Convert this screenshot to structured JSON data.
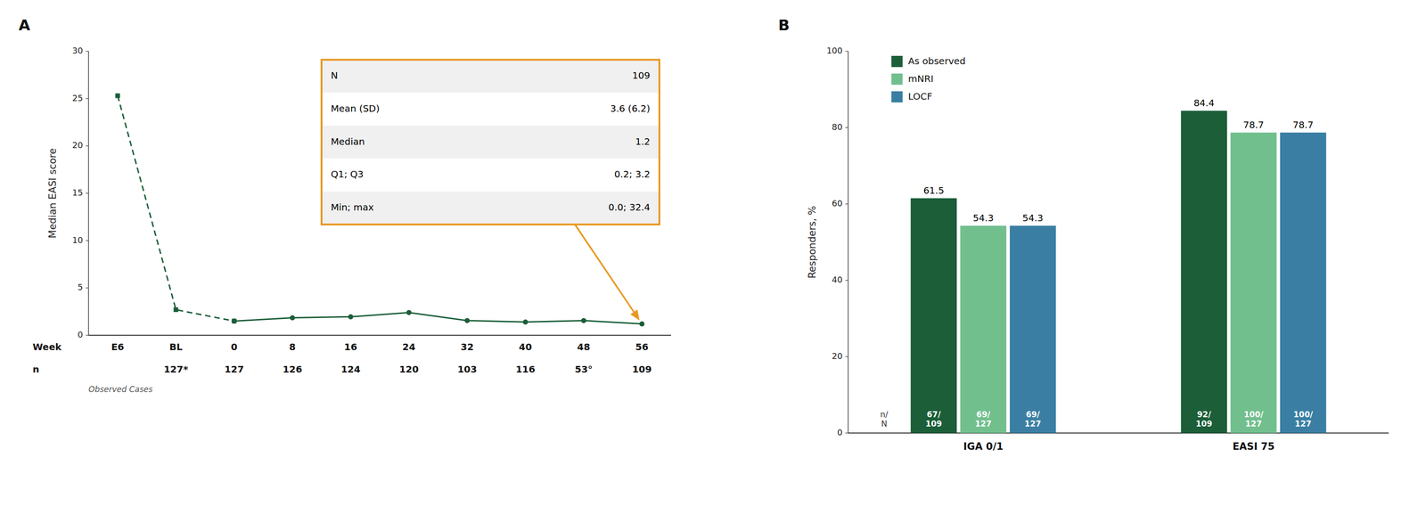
{
  "chart_data": [
    {
      "type": "line",
      "title": "A",
      "ylabel": "Median EASI score",
      "xlabel": "Week",
      "categories": [
        "E6",
        "BL",
        "0",
        "8",
        "16",
        "24",
        "32",
        "40",
        "48",
        "56"
      ],
      "series": [
        {
          "color": "#1b5e38",
          "line_style": "dashed",
          "marker": "square",
          "values": [
            25.3,
            2.7,
            1.5,
            null,
            null,
            null,
            null,
            null,
            null,
            null
          ]
        },
        {
          "color": "#1b5e38",
          "line_style": "solid",
          "marker": "circle",
          "values": [
            null,
            null,
            1.5,
            1.85,
            1.95,
            2.4,
            1.55,
            1.4,
            1.55,
            1.2
          ]
        }
      ],
      "ylim": [
        0,
        30
      ],
      "yticks": [
        0,
        5,
        10,
        15,
        20,
        25,
        30
      ],
      "grid": false,
      "n_row": {
        "label": "n",
        "labels": [
          null,
          "127*",
          "127",
          "126",
          "124",
          "120",
          "103",
          "116",
          "53°",
          "109"
        ]
      },
      "note": "Observed Cases",
      "table": {
        "rows": [
          [
            "N",
            "109"
          ],
          [
            "Mean (SD)",
            "3.6 (6.2)"
          ],
          [
            "Median",
            "1.2"
          ],
          [
            "Q1; Q3",
            "0.2; 3.2"
          ],
          [
            "Min; max",
            "0.0; 32.4"
          ]
        ],
        "color": "#E89820",
        "points_to": "56"
      }
    },
    {
      "type": "bar",
      "title": "B",
      "ylabel": "Responders, %",
      "categories": [
        "IGA 0/1",
        "EASI 75"
      ],
      "series": [
        {
          "name": "As observed",
          "color": "#1b5e38",
          "values": [
            61.5,
            84.4
          ],
          "n_labels": [
            "67/\n109",
            "92/\n109"
          ]
        },
        {
          "name": "mNRI",
          "color": "#72bf8e",
          "values": [
            54.3,
            78.7
          ],
          "n_labels": [
            "69/\n127",
            "100/\n127"
          ]
        },
        {
          "name": "LOCF",
          "color": "#3a7fa3",
          "values": [
            54.3,
            78.7
          ],
          "n_labels": [
            "69/\n127",
            "100/\n127"
          ]
        }
      ],
      "n_label": "n/\nN",
      "ylim": [
        0,
        100
      ],
      "yticks": [
        0,
        20,
        40,
        60,
        80,
        100
      ],
      "data_labels": true,
      "legend": "upper left",
      "grid": false
    }
  ]
}
